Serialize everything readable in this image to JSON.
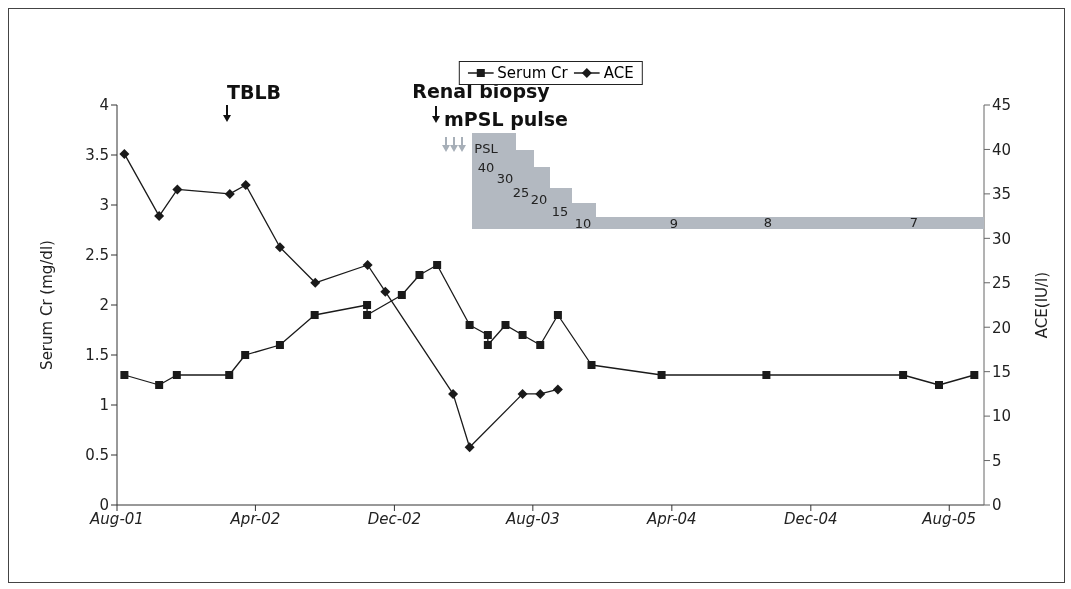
{
  "chart_data": {
    "type": "line",
    "ylabel": "Serum Cr (mg/dl)",
    "y2label": "ACE(IU/l)",
    "xlim": [
      "2001-08-01",
      "2005-10-01"
    ],
    "xticks": [
      {
        "value": "2001-08-01",
        "label": "Aug-01"
      },
      {
        "value": "2002-04-01",
        "label": "Apr-02"
      },
      {
        "value": "2002-12-01",
        "label": "Dec-02"
      },
      {
        "value": "2003-08-01",
        "label": "Aug-03"
      },
      {
        "value": "2004-04-01",
        "label": "Apr-04"
      },
      {
        "value": "2004-12-01",
        "label": "Dec-04"
      },
      {
        "value": "2005-08-01",
        "label": "Aug-05"
      }
    ],
    "ylim": [
      0,
      4
    ],
    "yticks": [
      0,
      0.5,
      1,
      1.5,
      2,
      2.5,
      3,
      3.5,
      4
    ],
    "y2lim": [
      0,
      45
    ],
    "y2ticks": [
      0,
      5,
      10,
      15,
      20,
      25,
      30,
      35,
      40,
      45
    ],
    "legend": "top",
    "line_style": "solid",
    "series": [
      {
        "name": "Serum Cr",
        "color": "#1a1a1a",
        "marker": "square",
        "x": [
          "2001-08-14",
          "2001-10-14",
          "2001-11-14",
          "2002-02-14",
          "2002-03-14",
          "2002-05-14",
          "2002-07-14",
          "2002-10-14",
          "2002-10-14",
          "2002-12-14",
          "2003-01-14",
          "2003-02-14",
          "2003-04-12",
          "2003-05-14",
          "2003-05-14",
          "2003-06-14",
          "2003-07-14",
          "2003-08-14",
          "2003-09-14",
          "2003-11-12",
          "2004-03-14",
          "2004-09-14",
          "2005-05-12",
          "2005-07-14",
          "2005-09-14"
        ],
        "values": [
          1.3,
          1.2,
          1.3,
          1.3,
          1.5,
          1.6,
          1.9,
          2.0,
          1.9,
          2.1,
          2.3,
          2.4,
          1.8,
          1.7,
          1.6,
          1.8,
          1.7,
          1.6,
          1.9,
          1.4,
          1.3,
          1.3,
          1.3,
          1.2,
          1.3
        ]
      },
      {
        "name": "ACE",
        "color": "#1a1a1a",
        "marker": "diamond",
        "axis": "y2",
        "x": [
          "2001-08-14",
          "2001-10-14",
          "2001-11-15",
          "2002-02-15",
          "2002-03-15",
          "2002-05-14",
          "2002-07-15",
          "2002-10-15",
          "2002-11-15",
          "2003-03-14",
          "2003-04-12",
          "2003-07-14",
          "2003-08-14",
          "2003-09-14"
        ],
        "values": [
          39.5,
          32.5,
          35.5,
          35,
          36,
          29,
          25,
          27,
          24,
          12.5,
          6.5,
          12.5,
          12.5,
          13
        ]
      }
    ],
    "annotations": [
      "TBLB",
      "Renal biopsy",
      "mPSL pulse",
      "PSL",
      "40",
      "30",
      "25",
      "20",
      "15",
      "10",
      "9",
      "8",
      "7"
    ]
  }
}
